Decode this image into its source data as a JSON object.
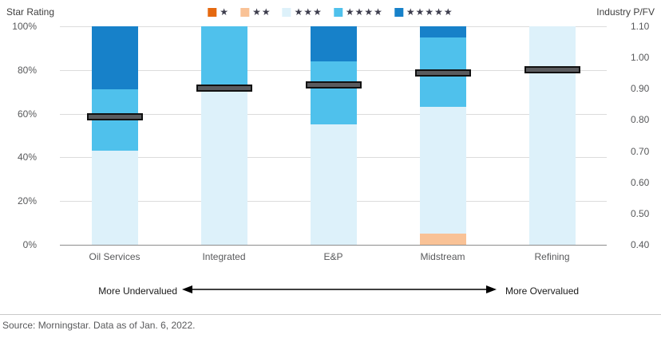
{
  "chart_data": {
    "type": "bar",
    "stacked": true,
    "title": "",
    "categories": [
      "Oil Services",
      "Integrated",
      "E&P",
      "Midstream",
      "Refining"
    ],
    "series": [
      {
        "name": "1-star",
        "stars": "★",
        "color": "#E56910",
        "values": [
          0,
          0,
          0,
          0,
          0
        ]
      },
      {
        "name": "2-star",
        "stars": "★★",
        "color": "#F9C296",
        "dot_color": "#F08A46",
        "values": [
          0,
          0,
          0,
          5,
          0
        ]
      },
      {
        "name": "3-star",
        "stars": "★★★",
        "color": "#DDF1FA",
        "dot_color": "#A5DCF3",
        "values": [
          43,
          70,
          55,
          58,
          100
        ]
      },
      {
        "name": "4-star",
        "stars": "★★★★",
        "color": "#4FC1EC",
        "values": [
          28,
          30,
          29,
          32,
          0
        ]
      },
      {
        "name": "5-star",
        "stars": "★★★★★",
        "color": "#1781C9",
        "values": [
          29,
          0,
          16,
          5,
          0
        ]
      }
    ],
    "markers": {
      "label": "Industry P/FV",
      "color": "#5A5B5E",
      "values": [
        0.81,
        0.9,
        0.91,
        0.95,
        0.96
      ]
    },
    "left_axis": {
      "title": "Star Rating",
      "ticks": [
        "100%",
        "80%",
        "60%",
        "40%",
        "20%",
        "0%"
      ],
      "min": 0,
      "max": 100
    },
    "right_axis": {
      "title": "Industry P/FV",
      "ticks": [
        "1.10",
        "1.00",
        "0.90",
        "0.80",
        "0.70",
        "0.60",
        "0.50",
        "0.40"
      ],
      "min": 0.4,
      "max": 1.1
    }
  },
  "footer": {
    "more_undervalued": "More Undervalued",
    "more_overvalued": "More Overvalued",
    "source": "Source: Morningstar. Data as of Jan. 6, 2022."
  }
}
